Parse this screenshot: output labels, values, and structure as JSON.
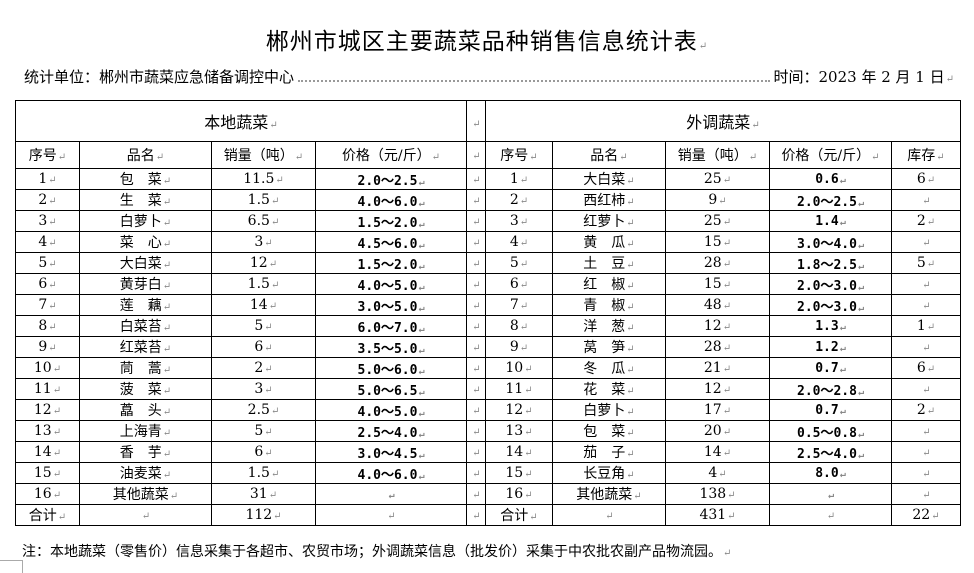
{
  "title": "郴州市城区主要蔬菜品种销售信息统计表",
  "meta": {
    "unit": "统计单位：郴州市蔬菜应急储备调控中心",
    "date": "时间：2023 年 2 月 1 日"
  },
  "local": {
    "section": "本地蔬菜",
    "headers": [
      "序号",
      "品名",
      "销量（吨）",
      "价格（元/斤）"
    ],
    "rows": [
      [
        "1",
        "包　菜",
        "11.5",
        "2.0～2.5"
      ],
      [
        "2",
        "生　菜",
        "1.5",
        "4.0～6.0"
      ],
      [
        "3",
        "白萝卜",
        "6.5",
        "1.5～2.0"
      ],
      [
        "4",
        "菜　心",
        "3",
        "4.5～6.0"
      ],
      [
        "5",
        "大白菜",
        "12",
        "1.5～2.0"
      ],
      [
        "6",
        "黄芽白",
        "1.5",
        "4.0～5.0"
      ],
      [
        "7",
        "莲　藕",
        "14",
        "3.0～5.0"
      ],
      [
        "8",
        "白菜苔",
        "5",
        "6.0～7.0"
      ],
      [
        "9",
        "红菜苔",
        "6",
        "3.5～5.0"
      ],
      [
        "10",
        "茼　蒿",
        "2",
        "5.0～6.0"
      ],
      [
        "11",
        "菠　菜",
        "3",
        "5.0～6.5"
      ],
      [
        "12",
        "藠　头",
        "2.5",
        "4.0～5.0"
      ],
      [
        "13",
        "上海青",
        "5",
        "2.5～4.0"
      ],
      [
        "14",
        "香　芋",
        "6",
        "3.0～4.5"
      ],
      [
        "15",
        "油麦菜",
        "1.5",
        "4.0～6.0"
      ],
      [
        "16",
        "其他蔬菜",
        "31",
        ""
      ]
    ],
    "total": [
      "合计",
      "",
      "112",
      ""
    ]
  },
  "imported": {
    "section": "外调蔬菜",
    "headers": [
      "序号",
      "品名",
      "销量（吨）",
      "价格（元/斤）",
      "库存"
    ],
    "rows": [
      [
        "1",
        "大白菜",
        "25",
        "0.6",
        "6"
      ],
      [
        "2",
        "西红柿",
        "9",
        "2.0～2.5",
        ""
      ],
      [
        "3",
        "红萝卜",
        "25",
        "1.4",
        "2"
      ],
      [
        "4",
        "黄　瓜",
        "15",
        "3.0～4.0",
        ""
      ],
      [
        "5",
        "土　豆",
        "28",
        "1.8～2.5",
        "5"
      ],
      [
        "6",
        "红　椒",
        "15",
        "2.0～3.0",
        ""
      ],
      [
        "7",
        "青　椒",
        "48",
        "2.0～3.0",
        ""
      ],
      [
        "8",
        "洋　葱",
        "12",
        "1.3",
        "1"
      ],
      [
        "9",
        "莴　笋",
        "28",
        "1.2",
        ""
      ],
      [
        "10",
        "冬　瓜",
        "21",
        "0.7",
        "6"
      ],
      [
        "11",
        "花　菜",
        "12",
        "2.0～2.8",
        ""
      ],
      [
        "12",
        "白萝卜",
        "17",
        "0.7",
        "2"
      ],
      [
        "13",
        "包　菜",
        "20",
        "0.5～0.8",
        ""
      ],
      [
        "14",
        "茄　子",
        "14",
        "2.5～4.0",
        ""
      ],
      [
        "15",
        "长豆角",
        "4",
        "8.0",
        ""
      ],
      [
        "16",
        "其他蔬菜",
        "138",
        "",
        ""
      ]
    ],
    "total": [
      "合计",
      "",
      "431",
      "",
      "22"
    ]
  },
  "note": "注：本地蔬菜（零售价）信息采集于各超市、农贸市场；外调蔬菜信息（批发价）采集于中农批农副产品物流园。"
}
